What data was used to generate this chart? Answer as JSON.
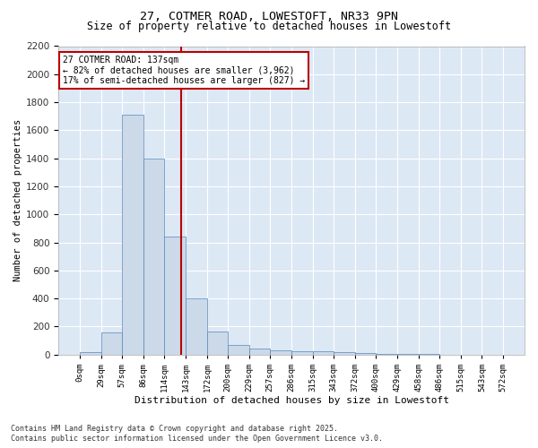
{
  "title1": "27, COTMER ROAD, LOWESTOFT, NR33 9PN",
  "title2": "Size of property relative to detached houses in Lowestoft",
  "xlabel": "Distribution of detached houses by size in Lowestoft",
  "ylabel": "Number of detached properties",
  "bar_color": "#ccd9e8",
  "bar_edge_color": "#5588bb",
  "background_color": "#dde8f5",
  "grid_color": "#ffffff",
  "annotation_line1": "27 COTMER ROAD: 137sqm",
  "annotation_line2": "← 82% of detached houses are smaller (3,962)",
  "annotation_line3": "17% of semi-detached houses are larger (827) →",
  "vline_x": 137,
  "vline_color": "#bb0000",
  "annotation_box_edgecolor": "#bb0000",
  "bin_edges": [
    0,
    29,
    57,
    86,
    114,
    143,
    172,
    200,
    229,
    257,
    286,
    315,
    343,
    372,
    400,
    429,
    458,
    486,
    515,
    543,
    572
  ],
  "bar_heights": [
    18,
    155,
    1710,
    1395,
    840,
    400,
    163,
    65,
    40,
    30,
    25,
    25,
    15,
    10,
    5,
    3,
    2,
    1,
    0,
    0
  ],
  "ylim": [
    0,
    2200
  ],
  "yticks": [
    0,
    200,
    400,
    600,
    800,
    1000,
    1200,
    1400,
    1600,
    1800,
    2000,
    2200
  ],
  "footnote1": "Contains HM Land Registry data © Crown copyright and database right 2025.",
  "footnote2": "Contains public sector information licensed under the Open Government Licence v3.0.",
  "fig_width": 6.0,
  "fig_height": 5.0,
  "dpi": 100
}
